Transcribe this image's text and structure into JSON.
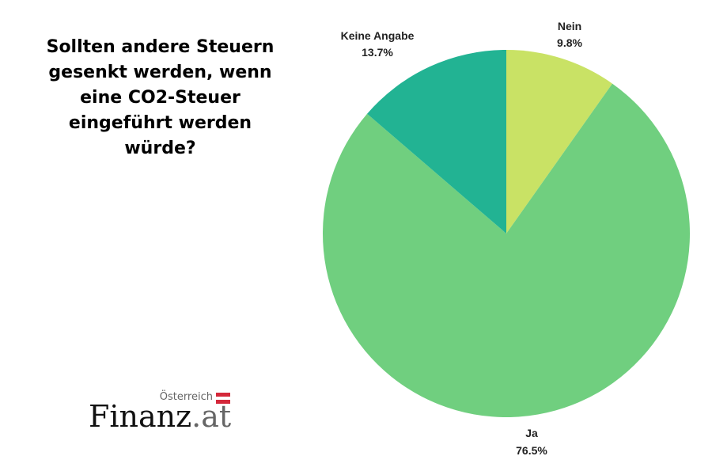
{
  "chart_data": {
    "type": "pie",
    "title": "Sollten andere Steuern gesenkt werden, wenn eine CO2-Steuer eingeführt werden würde?",
    "categories": [
      "Nein",
      "Ja",
      "Keine Angabe"
    ],
    "values": [
      9.8,
      76.5,
      13.7
    ],
    "value_labels": [
      "9.8%",
      "76.5%",
      "13.7%"
    ],
    "colors": [
      "#c9e265",
      "#70cf7f",
      "#22b393"
    ],
    "start_angle_deg": 0,
    "direction": "clockwise from top"
  },
  "logo": {
    "country": "Österreich",
    "main": "Finanz",
    "suffix": ".at",
    "flag_colors": [
      "#d4283a",
      "#ffffff",
      "#d4283a"
    ]
  }
}
